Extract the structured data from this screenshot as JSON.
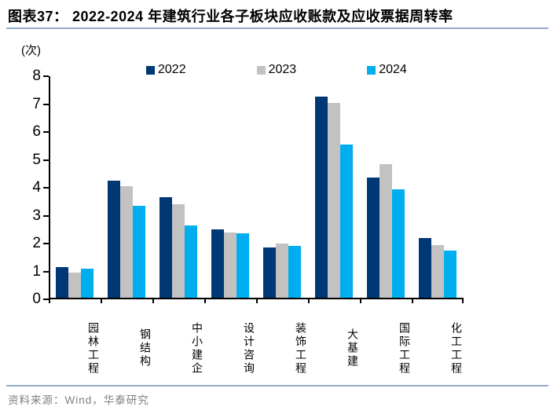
{
  "header": {
    "title": "图表37：  2022-2024 年建筑行业各子板块应收账款及应收票据周转率"
  },
  "unit_label": "(次)",
  "footer": {
    "source_text": "资料来源：Wind，华泰研究"
  },
  "colors": {
    "series_2022": "#003876",
    "series_2023": "#C2C2C2",
    "series_2024": "#00AEEF",
    "axis": "#000000",
    "rule": "#94ABC7",
    "source_text": "#7F7F7F"
  },
  "chart_data": {
    "type": "bar",
    "title": "2022-2024 年建筑行业各子板块应收账款及应收票据周转率",
    "unit": "次",
    "categories": [
      "园林工程",
      "钢结构",
      "中小建企",
      "设计咨询",
      "装饰工程",
      "大基建",
      "国际工程",
      "化工工程"
    ],
    "series": [
      {
        "name": "2022",
        "color": "#003876",
        "values": [
          1.1,
          4.2,
          3.6,
          2.45,
          1.8,
          7.2,
          4.3,
          2.15
        ]
      },
      {
        "name": "2023",
        "color": "#C2C2C2",
        "values": [
          0.9,
          4.0,
          3.35,
          2.35,
          1.95,
          7.0,
          4.8,
          1.9
        ]
      },
      {
        "name": "2024",
        "color": "#00AEEF",
        "values": [
          1.05,
          3.3,
          2.6,
          2.3,
          1.85,
          5.5,
          3.9,
          1.7
        ]
      }
    ],
    "xlabel": "",
    "ylabel": "(次)",
    "ylim": [
      0,
      8
    ],
    "ytick_step": 1,
    "grid": false,
    "legend_position": "top"
  }
}
